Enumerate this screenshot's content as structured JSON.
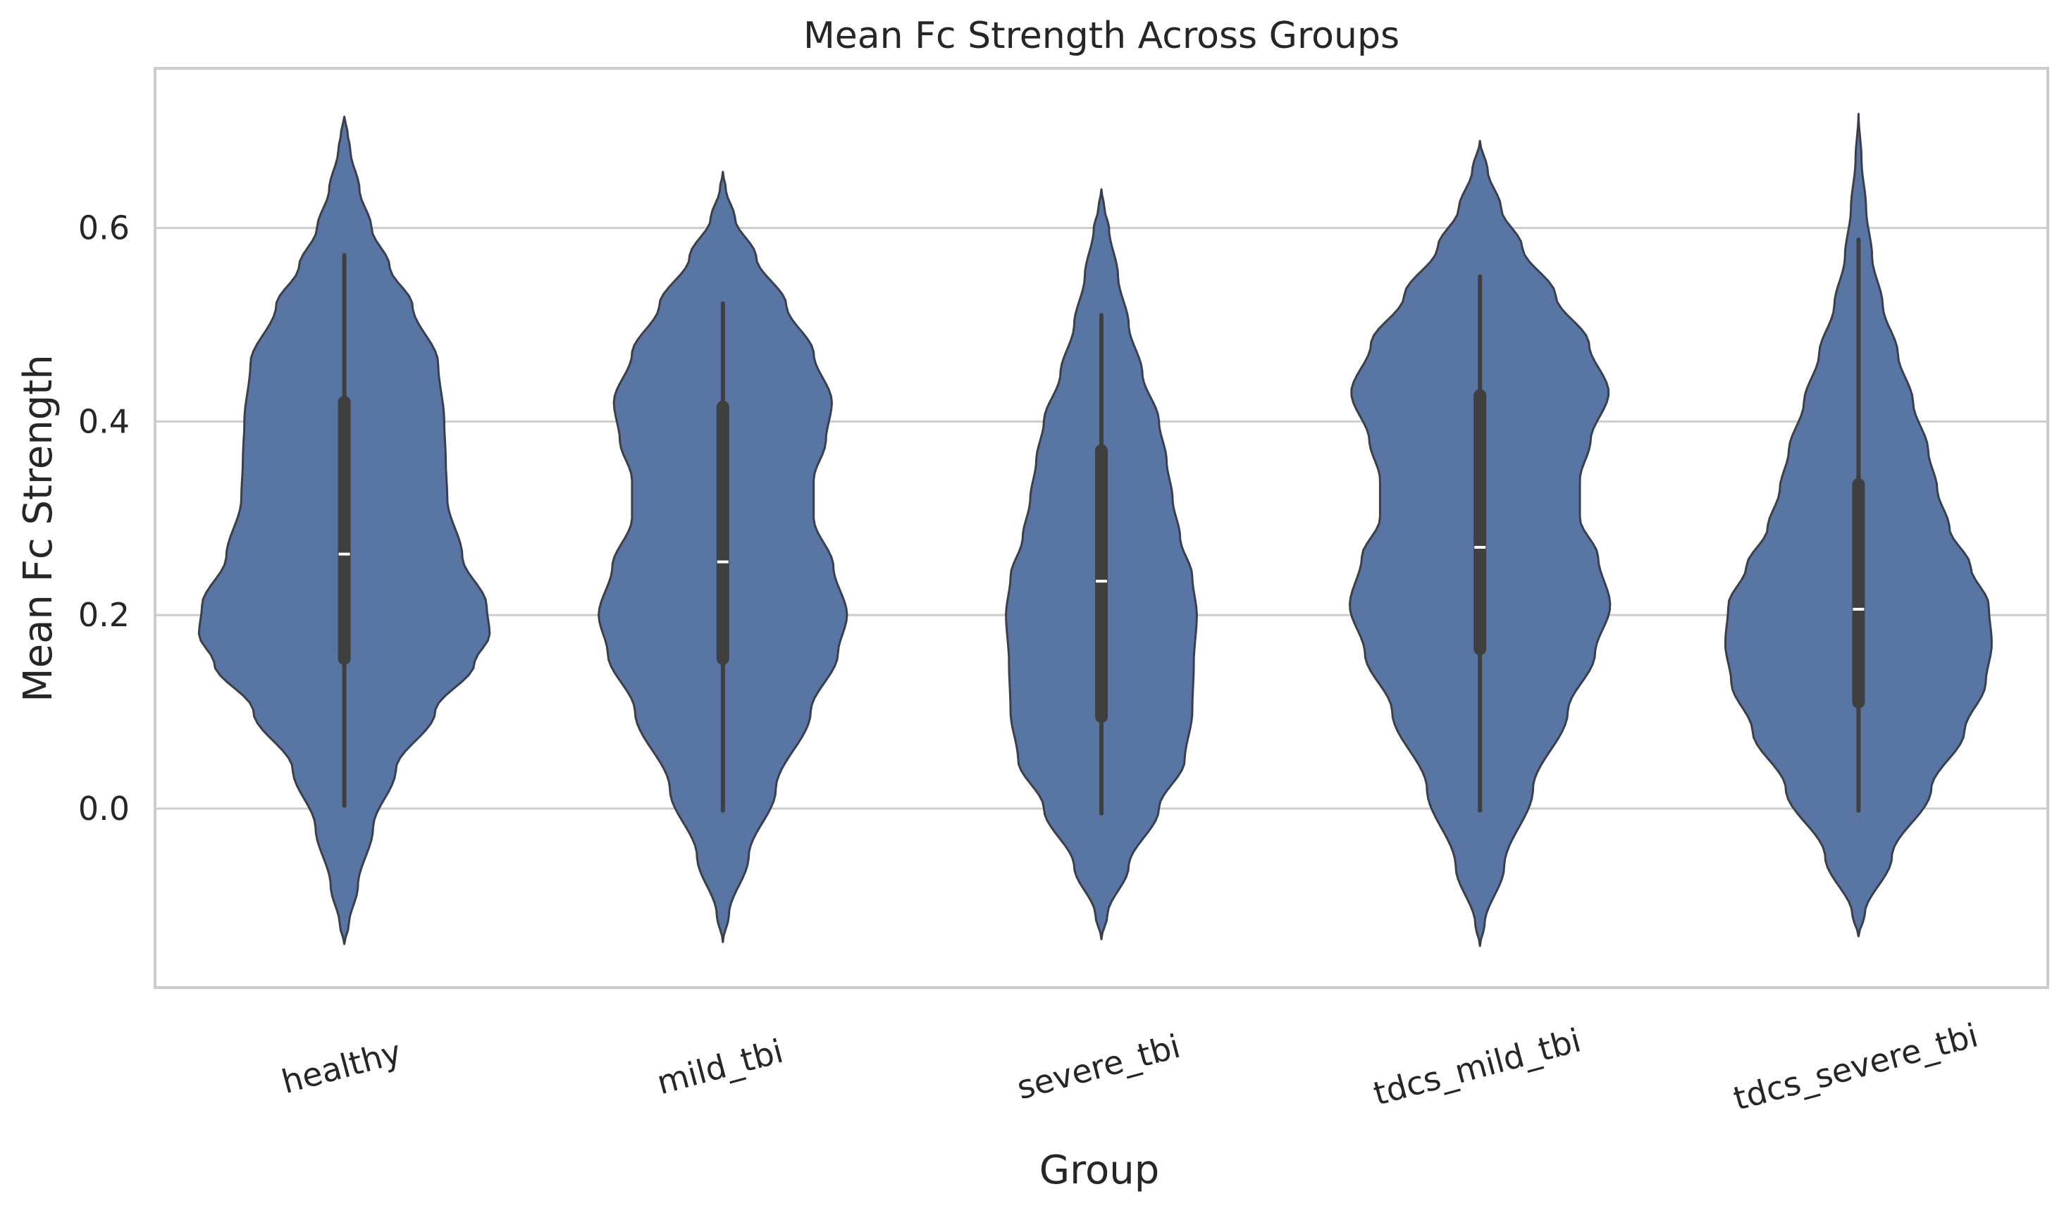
{
  "chart_data": {
    "type": "violin",
    "title": "Mean Fc Strength Across Groups",
    "xlabel": "Group",
    "ylabel": "Mean Fc Strength",
    "ylim": [
      -0.185,
      0.765
    ],
    "yticks": [
      0.0,
      0.2,
      0.4,
      0.6
    ],
    "ytick_labels": [
      "0.0",
      "0.2",
      "0.4",
      "0.6"
    ],
    "categories": [
      "healthy",
      "mild_tbi",
      "severe_tbi",
      "tdcs_mild_tbi",
      "tdcs_severe_tbi"
    ],
    "grid": true,
    "colors": {
      "violin_fill": "#5975a4",
      "violin_edge": "#3a3f4a",
      "box": "#3f3f3f",
      "median": "#ffffff",
      "grid": "#cccccc",
      "frame": "#cccccc",
      "text": "#262626"
    },
    "violins": [
      {
        "name": "healthy",
        "min": 0.003,
        "q1": 0.155,
        "median": 0.263,
        "q3": 0.42,
        "max": 0.572,
        "kde_range": [
          -0.14,
          0.715
        ],
        "density": [
          [
            -0.14,
            0.0
          ],
          [
            -0.12,
            0.03
          ],
          [
            -0.08,
            0.09
          ],
          [
            -0.02,
            0.19
          ],
          [
            0.04,
            0.34
          ],
          [
            0.1,
            0.6
          ],
          [
            0.15,
            0.86
          ],
          [
            0.18,
            0.96
          ],
          [
            0.21,
            0.94
          ],
          [
            0.26,
            0.78
          ],
          [
            0.32,
            0.68
          ],
          [
            0.36,
            0.67
          ],
          [
            0.4,
            0.66
          ],
          [
            0.46,
            0.62
          ],
          [
            0.52,
            0.45
          ],
          [
            0.56,
            0.3
          ],
          [
            0.6,
            0.18
          ],
          [
            0.64,
            0.1
          ],
          [
            0.68,
            0.04
          ],
          [
            0.7,
            0.02
          ],
          [
            0.715,
            0.0
          ]
        ]
      },
      {
        "name": "mild_tbi",
        "min": -0.002,
        "q1": 0.155,
        "median": 0.255,
        "q3": 0.415,
        "max": 0.522,
        "kde_range": [
          -0.138,
          0.658
        ],
        "density": [
          [
            -0.138,
            0.0
          ],
          [
            -0.11,
            0.04
          ],
          [
            -0.05,
            0.17
          ],
          [
            0.02,
            0.35
          ],
          [
            0.1,
            0.58
          ],
          [
            0.16,
            0.76
          ],
          [
            0.2,
            0.82
          ],
          [
            0.25,
            0.73
          ],
          [
            0.3,
            0.6
          ],
          [
            0.34,
            0.6
          ],
          [
            0.38,
            0.68
          ],
          [
            0.42,
            0.72
          ],
          [
            0.47,
            0.6
          ],
          [
            0.52,
            0.42
          ],
          [
            0.57,
            0.22
          ],
          [
            0.61,
            0.08
          ],
          [
            0.64,
            0.02
          ],
          [
            0.658,
            0.0
          ]
        ]
      },
      {
        "name": "severe_tbi",
        "min": -0.005,
        "q1": 0.095,
        "median": 0.235,
        "q3": 0.37,
        "max": 0.51,
        "kde_range": [
          -0.135,
          0.64
        ],
        "density": [
          [
            -0.135,
            0.0
          ],
          [
            -0.11,
            0.04
          ],
          [
            -0.06,
            0.18
          ],
          [
            0.0,
            0.38
          ],
          [
            0.05,
            0.55
          ],
          [
            0.1,
            0.6
          ],
          [
            0.15,
            0.61
          ],
          [
            0.2,
            0.63
          ],
          [
            0.24,
            0.6
          ],
          [
            0.28,
            0.52
          ],
          [
            0.32,
            0.47
          ],
          [
            0.36,
            0.43
          ],
          [
            0.4,
            0.38
          ],
          [
            0.45,
            0.27
          ],
          [
            0.5,
            0.18
          ],
          [
            0.55,
            0.11
          ],
          [
            0.6,
            0.05
          ],
          [
            0.62,
            0.02
          ],
          [
            0.64,
            0.0
          ]
        ]
      },
      {
        "name": "tdcs_mild_tbi",
        "min": -0.002,
        "q1": 0.165,
        "median": 0.27,
        "q3": 0.427,
        "max": 0.55,
        "kde_range": [
          -0.142,
          0.69
        ],
        "density": [
          [
            -0.142,
            0.0
          ],
          [
            -0.12,
            0.03
          ],
          [
            -0.06,
            0.16
          ],
          [
            0.02,
            0.35
          ],
          [
            0.1,
            0.58
          ],
          [
            0.16,
            0.76
          ],
          [
            0.21,
            0.86
          ],
          [
            0.26,
            0.78
          ],
          [
            0.3,
            0.66
          ],
          [
            0.34,
            0.66
          ],
          [
            0.38,
            0.73
          ],
          [
            0.43,
            0.85
          ],
          [
            0.48,
            0.72
          ],
          [
            0.53,
            0.5
          ],
          [
            0.58,
            0.28
          ],
          [
            0.62,
            0.14
          ],
          [
            0.66,
            0.05
          ],
          [
            0.69,
            0.0
          ]
        ]
      },
      {
        "name": "tdcs_severe_tbi",
        "min": -0.002,
        "q1": 0.11,
        "median": 0.206,
        "q3": 0.335,
        "max": 0.588,
        "kde_range": [
          -0.132,
          0.718
        ],
        "density": [
          [
            -0.132,
            0.0
          ],
          [
            -0.11,
            0.04
          ],
          [
            -0.05,
            0.22
          ],
          [
            0.02,
            0.48
          ],
          [
            0.08,
            0.7
          ],
          [
            0.13,
            0.84
          ],
          [
            0.17,
            0.88
          ],
          [
            0.21,
            0.86
          ],
          [
            0.25,
            0.74
          ],
          [
            0.29,
            0.6
          ],
          [
            0.33,
            0.52
          ],
          [
            0.37,
            0.46
          ],
          [
            0.42,
            0.36
          ],
          [
            0.47,
            0.26
          ],
          [
            0.52,
            0.16
          ],
          [
            0.57,
            0.09
          ],
          [
            0.62,
            0.05
          ],
          [
            0.67,
            0.02
          ],
          [
            0.718,
            0.0
          ]
        ]
      }
    ]
  }
}
